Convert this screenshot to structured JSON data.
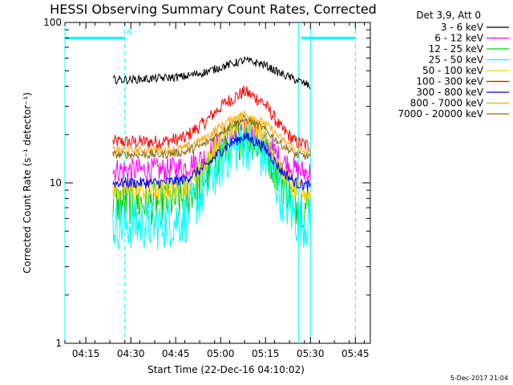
{
  "chart_data": {
    "type": "line",
    "title": "HESSI Observing Summary Count Rates, Corrected",
    "xlabel": "Start Time (22-Dec-16 04:10:02)",
    "ylabel": "Corrected Count Rate (s⁻¹ detector⁻¹)",
    "xscale": "time",
    "yscale": "log",
    "xlim": [
      "04:08",
      "05:50"
    ],
    "ylim": [
      1,
      100
    ],
    "x_ticks": [
      "04:15",
      "04:30",
      "04:45",
      "05:00",
      "05:15",
      "05:30",
      "05:45"
    ],
    "y_ticks": [
      "1",
      "10",
      "100"
    ],
    "grid": false,
    "legend_position": "top-right",
    "legend_title": "Det 3,9, Att 0",
    "footer": "5-Dec-2017 21:04",
    "annotation": "N",
    "markers": {
      "night_bars": [
        {
          "start": "04:08",
          "end": "04:28",
          "level": 80
        },
        {
          "start": "05:27",
          "end": "05:45",
          "level": 80
        }
      ],
      "dashed_lines": [
        "04:28",
        "05:45"
      ],
      "solid_lines": [
        "04:08",
        "05:26",
        "05:30"
      ]
    },
    "series": [
      {
        "name": "3 - 6 keV",
        "color": "#000000",
        "x": [
          "04:24",
          "04:30",
          "04:40",
          "04:48",
          "04:55",
          "05:02",
          "05:08",
          "05:14",
          "05:20",
          "05:25",
          "05:30"
        ],
        "y": [
          44,
          44,
          45,
          46,
          49,
          54,
          58,
          55,
          48,
          44,
          40
        ]
      },
      {
        "name": "6 - 12 keV",
        "color": "#ff00ff",
        "x": [
          "04:24",
          "04:30",
          "04:40",
          "04:48",
          "04:55",
          "05:02",
          "05:08",
          "05:14",
          "05:20",
          "05:25",
          "05:30"
        ],
        "y": [
          12,
          12,
          12,
          12.5,
          14.5,
          19,
          21,
          18.5,
          14,
          12,
          11.5
        ]
      },
      {
        "name": "12 - 25 keV",
        "color": "#00cc00",
        "x": [
          "04:24",
          "04:30",
          "04:40",
          "04:48",
          "04:55",
          "05:02",
          "05:08",
          "05:14",
          "05:20",
          "05:25",
          "05:30"
        ],
        "y": [
          7.5,
          7.5,
          7.5,
          8,
          11,
          17,
          20,
          17,
          10.5,
          7.5,
          7
        ]
      },
      {
        "name": "25 - 50 keV",
        "color": "#00ffff",
        "x": [
          "04:24",
          "04:30",
          "04:40",
          "04:48",
          "04:55",
          "05:02",
          "05:08",
          "05:14",
          "05:20",
          "05:25",
          "05:30"
        ],
        "y": [
          5.5,
          5.5,
          5.5,
          6,
          9,
          15,
          18,
          15,
          8.5,
          6,
          5.5
        ]
      },
      {
        "name": "50 - 100 keV",
        "color": "#ffcc00",
        "x": [
          "04:24",
          "04:30",
          "04:40",
          "04:48",
          "04:55",
          "05:02",
          "05:08",
          "05:14",
          "05:20",
          "05:25",
          "05:30"
        ],
        "y": [
          9,
          9,
          9,
          9.5,
          13,
          21,
          25,
          21,
          12,
          9,
          8.5
        ]
      },
      {
        "name": "100 - 300 keV",
        "color": "#ff0000",
        "x": [
          "04:24",
          "04:30",
          "04:40",
          "04:48",
          "04:55",
          "05:02",
          "05:08",
          "05:14",
          "05:20",
          "05:25",
          "05:30"
        ],
        "y": [
          18,
          18,
          18,
          19,
          24,
          32,
          37,
          32,
          22,
          18,
          17
        ]
      },
      {
        "name": "300 - 800 keV",
        "color": "#0000ff",
        "x": [
          "04:24",
          "04:30",
          "04:40",
          "04:48",
          "04:55",
          "05:02",
          "05:08",
          "05:14",
          "05:20",
          "05:25",
          "05:30"
        ],
        "y": [
          10,
          10,
          10,
          10.5,
          12.5,
          17,
          19.5,
          17,
          12,
          10,
          9.5
        ]
      },
      {
        "name": "800 - 7000 keV",
        "color": "#ffa500",
        "x": [
          "04:24",
          "04:30",
          "04:40",
          "04:48",
          "04:55",
          "05:02",
          "05:08",
          "05:14",
          "05:20",
          "05:25",
          "05:30"
        ],
        "y": [
          16,
          16,
          16,
          16.5,
          19,
          24,
          27,
          24,
          19,
          16,
          15.5
        ]
      },
      {
        "name": "7000 - 20000 keV",
        "color": "#8b6914",
        "x": [
          "04:24",
          "04:30",
          "04:40",
          "04:48",
          "04:55",
          "05:02",
          "05:08",
          "05:14",
          "05:20",
          "05:25",
          "05:30"
        ],
        "y": [
          15,
          15,
          15,
          15.5,
          17.5,
          22,
          25,
          22,
          17.5,
          15,
          14.5
        ]
      }
    ]
  }
}
